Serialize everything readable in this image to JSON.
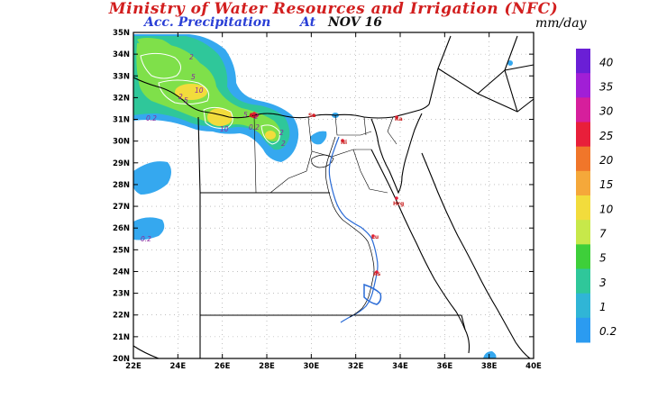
{
  "header": {
    "title": "Ministry of Water Resources and Irrigation (NFC)",
    "variable": "Acc. Precipitation",
    "at_label": "At",
    "date": "NOV 16",
    "units": "mm/day"
  },
  "map": {
    "lat_ticks": [
      "35N",
      "34N",
      "33N",
      "32N",
      "31N",
      "30N",
      "29N",
      "28N",
      "27N",
      "26N",
      "25N",
      "24N",
      "23N",
      "22N",
      "21N",
      "20N"
    ],
    "lon_ticks": [
      "22E",
      "24E",
      "26E",
      "28E",
      "30E",
      "32E",
      "34E",
      "36E",
      "38E",
      "40E"
    ],
    "contour_labels": [
      "2",
      "5",
      "10",
      "5",
      "2",
      "0.2",
      "10",
      "5",
      "2",
      "0.2",
      "2",
      "2",
      "0.2"
    ],
    "city_labels": [
      "Sa",
      "Ni",
      "Ra",
      "Lu",
      "Hrg",
      "As",
      "Ar"
    ]
  },
  "legend": {
    "labels": [
      "40",
      "35",
      "30",
      "25",
      "20",
      "15",
      "10",
      "7",
      "5",
      "3",
      "1",
      "0.2"
    ],
    "colors": [
      "#6a1fd6",
      "#a11fd6",
      "#d61f9c",
      "#e81f3a",
      "#f0762a",
      "#f5a83a",
      "#f2dc3c",
      "#c7e84a",
      "#3ecf3a",
      "#2fc79a",
      "#30b5d6",
      "#2b9bf0"
    ]
  },
  "colors": {
    "title": "#d21e1e",
    "subtitle": "#2a3fd6",
    "precip_light_blue": "#35a8ef",
    "precip_teal": "#2fc79a",
    "precip_green": "#7fe04a",
    "precip_yellow": "#f2dc3c",
    "nile": "#2a6bd6"
  }
}
